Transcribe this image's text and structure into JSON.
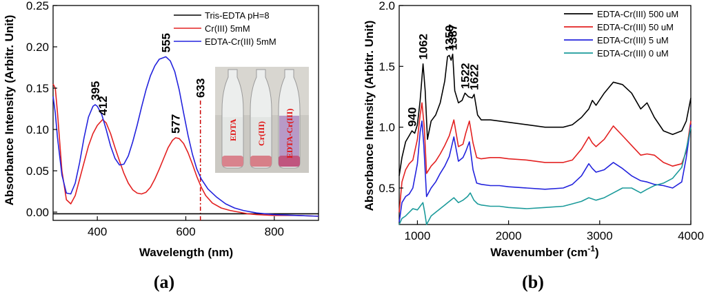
{
  "chart_data": [
    {
      "type": "line",
      "panel_label": "(a)",
      "xlabel": "Wavelength (nm)",
      "ylabel": "Absorbance Intensity (Arbitr. Unit)",
      "xlim": [
        300,
        900
      ],
      "ylim": [
        -0.01,
        0.25
      ],
      "xticks": [
        400,
        600,
        800
      ],
      "yticks": [
        0.0,
        0.05,
        0.1,
        0.15,
        0.2,
        0.25
      ],
      "ytick_labels": [
        "0.00",
        "0.05",
        "0.10",
        "0.15",
        "0.20",
        "0.25"
      ],
      "legend_position": "top-right",
      "series": [
        {
          "name": "Tris-EDTA pH=8",
          "color": "#000000",
          "x": [
            300,
            320,
            340,
            360,
            400,
            450,
            500,
            550,
            600,
            650,
            700,
            750,
            800,
            850,
            900
          ],
          "y": [
            -0.002,
            -0.002,
            -0.002,
            -0.002,
            -0.002,
            -0.002,
            -0.002,
            -0.002,
            -0.002,
            -0.002,
            -0.002,
            -0.002,
            -0.002,
            -0.002,
            -0.002
          ]
        },
        {
          "name": "Cr(III) 5mM",
          "color": "#e32020",
          "x": [
            300,
            305,
            310,
            320,
            330,
            340,
            350,
            360,
            370,
            380,
            390,
            400,
            412,
            420,
            430,
            440,
            450,
            460,
            470,
            480,
            490,
            500,
            510,
            520,
            530,
            540,
            550,
            560,
            570,
            577,
            585,
            595,
            605,
            615,
            625,
            635,
            645,
            660,
            680,
            700,
            720,
            740,
            760,
            800,
            850,
            900
          ],
          "y": [
            0.155,
            0.15,
            0.12,
            0.05,
            0.015,
            0.01,
            0.02,
            0.04,
            0.06,
            0.08,
            0.095,
            0.105,
            0.112,
            0.108,
            0.095,
            0.078,
            0.062,
            0.047,
            0.035,
            0.027,
            0.023,
            0.022,
            0.024,
            0.03,
            0.04,
            0.052,
            0.065,
            0.078,
            0.087,
            0.09,
            0.089,
            0.083,
            0.072,
            0.058,
            0.043,
            0.03,
            0.02,
            0.011,
            0.005,
            0.002,
            0.0,
            -0.002,
            -0.003,
            -0.004,
            -0.004,
            -0.005
          ]
        },
        {
          "name": "EDTA-Cr(III) 5mM",
          "color": "#2222dd",
          "x": [
            300,
            305,
            310,
            320,
            330,
            340,
            350,
            360,
            370,
            380,
            390,
            395,
            400,
            410,
            420,
            430,
            440,
            450,
            460,
            470,
            480,
            490,
            500,
            510,
            520,
            530,
            540,
            555,
            565,
            575,
            585,
            595,
            605,
            615,
            625,
            635,
            650,
            670,
            690,
            710,
            730,
            760,
            800,
            850,
            900
          ],
          "y": [
            0.14,
            0.12,
            0.09,
            0.045,
            0.023,
            0.022,
            0.035,
            0.06,
            0.09,
            0.115,
            0.128,
            0.13,
            0.128,
            0.118,
            0.1,
            0.08,
            0.065,
            0.057,
            0.058,
            0.068,
            0.085,
            0.105,
            0.127,
            0.148,
            0.165,
            0.177,
            0.185,
            0.188,
            0.183,
            0.17,
            0.148,
            0.12,
            0.093,
            0.07,
            0.052,
            0.04,
            0.028,
            0.018,
            0.01,
            0.005,
            0.002,
            -0.001,
            -0.003,
            -0.004,
            -0.005
          ]
        }
      ],
      "peak_labels": [
        {
          "text": "395",
          "x": 395,
          "y": 0.13
        },
        {
          "text": "412",
          "x": 412,
          "y": 0.112
        },
        {
          "text": "555",
          "x": 555,
          "y": 0.188
        },
        {
          "text": "577",
          "x": 577,
          "y": 0.09
        }
      ],
      "marker_line": {
        "x": 633,
        "label": "633",
        "color": "#cc0000"
      },
      "inset_photo": {
        "description_labels": [
          "EDTA",
          "Cr(III)",
          "EDTA-Cr(III)"
        ],
        "liquid_colors": [
          "#e9ebea",
          "#e6e8e6",
          "#b79ac7"
        ],
        "base_colors": [
          "#d9838d",
          "#d77f88",
          "#c0557f"
        ],
        "background": "#c9c7c1"
      }
    },
    {
      "type": "line",
      "panel_label": "(b)",
      "xlabel": "Wavenumber (cm",
      "xlabel_superscript": "-1",
      "xlabel_suffix": ")",
      "ylabel": "Absorbance Intensity (Arbitr. Unit)",
      "xlim": [
        800,
        4000
      ],
      "ylim": [
        0.2,
        2.0
      ],
      "xticks": [
        1000,
        2000,
        3000,
        4000
      ],
      "yticks": [
        0.5,
        1.0,
        1.5,
        2.0
      ],
      "ytick_labels": [
        "0.5",
        "1.0",
        "1.5",
        "2.0"
      ],
      "legend_position": "top-right",
      "series": [
        {
          "name": "EDTA-Cr(III) 500 uM",
          "color": "#000000",
          "x": [
            800,
            830,
            870,
            910,
            940,
            970,
            1000,
            1030,
            1062,
            1085,
            1110,
            1150,
            1200,
            1250,
            1300,
            1330,
            1350,
            1370,
            1387,
            1410,
            1450,
            1490,
            1522,
            1560,
            1600,
            1622,
            1660,
            1700,
            1800,
            1900,
            2000,
            2200,
            2400,
            2600,
            2700,
            2800,
            2880,
            2920,
            2960,
            3050,
            3150,
            3250,
            3350,
            3450,
            3520,
            3600,
            3700,
            3800,
            3900,
            3950,
            4000
          ],
          "y": [
            0.6,
            0.75,
            0.88,
            0.93,
            0.97,
            0.95,
            1.02,
            1.22,
            1.52,
            1.3,
            0.9,
            1.05,
            1.1,
            1.2,
            1.38,
            1.58,
            1.59,
            1.55,
            1.6,
            1.3,
            1.2,
            1.22,
            1.28,
            1.25,
            1.24,
            1.27,
            1.1,
            1.06,
            1.06,
            1.05,
            1.04,
            1.02,
            1.0,
            1.0,
            1.02,
            1.08,
            1.15,
            1.22,
            1.18,
            1.28,
            1.37,
            1.35,
            1.28,
            1.15,
            1.2,
            1.08,
            0.97,
            0.94,
            0.97,
            1.05,
            1.24
          ]
        },
        {
          "name": "EDTA-Cr(III) 50 uM",
          "color": "#e32020",
          "x": [
            800,
            830,
            870,
            910,
            950,
            1000,
            1030,
            1050,
            1075,
            1100,
            1150,
            1200,
            1250,
            1300,
            1350,
            1400,
            1450,
            1500,
            1530,
            1570,
            1610,
            1650,
            1700,
            1800,
            1900,
            2000,
            2200,
            2400,
            2600,
            2700,
            2800,
            2880,
            2920,
            2960,
            3050,
            3150,
            3250,
            3350,
            3450,
            3520,
            3600,
            3700,
            3800,
            3900,
            3950,
            4000
          ],
          "y": [
            0.3,
            0.55,
            0.65,
            0.7,
            0.73,
            0.9,
            1.1,
            1.2,
            1.0,
            0.62,
            0.68,
            0.72,
            0.78,
            0.85,
            0.93,
            1.06,
            0.84,
            0.86,
            0.95,
            1.05,
            0.87,
            0.75,
            0.74,
            0.75,
            0.75,
            0.74,
            0.73,
            0.71,
            0.71,
            0.73,
            0.82,
            0.92,
            0.87,
            0.84,
            0.9,
            1.01,
            0.93,
            0.85,
            0.77,
            0.78,
            0.77,
            0.71,
            0.68,
            0.7,
            0.8,
            1.05
          ]
        },
        {
          "name": "EDTA-Cr(III) 5 uM",
          "color": "#2222dd",
          "x": [
            800,
            830,
            870,
            910,
            950,
            1000,
            1030,
            1050,
            1070,
            1100,
            1150,
            1200,
            1250,
            1300,
            1350,
            1400,
            1450,
            1500,
            1530,
            1570,
            1610,
            1650,
            1700,
            1800,
            1900,
            2000,
            2200,
            2400,
            2600,
            2700,
            2800,
            2880,
            2920,
            2960,
            3050,
            3150,
            3250,
            3350,
            3450,
            3520,
            3600,
            3700,
            3800,
            3900,
            3950,
            4000
          ],
          "y": [
            0.22,
            0.38,
            0.43,
            0.45,
            0.5,
            0.7,
            0.96,
            1.05,
            0.85,
            0.43,
            0.5,
            0.55,
            0.62,
            0.68,
            0.76,
            0.92,
            0.72,
            0.75,
            0.8,
            0.88,
            0.65,
            0.54,
            0.53,
            0.52,
            0.52,
            0.51,
            0.5,
            0.49,
            0.5,
            0.53,
            0.6,
            0.7,
            0.66,
            0.63,
            0.65,
            0.71,
            0.66,
            0.6,
            0.56,
            0.55,
            0.53,
            0.52,
            0.5,
            0.55,
            0.75,
            1.02
          ]
        },
        {
          "name": "EDTA-Cr(III) 0 uM",
          "color": "#1a9a9a",
          "x": [
            800,
            830,
            870,
            910,
            950,
            1000,
            1030,
            1060,
            1080,
            1100,
            1150,
            1200,
            1250,
            1300,
            1350,
            1400,
            1450,
            1500,
            1550,
            1580,
            1620,
            1660,
            1700,
            1800,
            1900,
            2000,
            2200,
            2400,
            2600,
            2700,
            2800,
            2880,
            2920,
            2960,
            3050,
            3150,
            3250,
            3350,
            3450,
            3520,
            3600,
            3700,
            3800,
            3900,
            3950,
            4000
          ],
          "y": [
            0.2,
            0.25,
            0.27,
            0.3,
            0.33,
            0.32,
            0.35,
            0.38,
            0.3,
            0.2,
            0.27,
            0.3,
            0.33,
            0.36,
            0.39,
            0.42,
            0.38,
            0.4,
            0.43,
            0.46,
            0.4,
            0.37,
            0.36,
            0.35,
            0.35,
            0.34,
            0.33,
            0.34,
            0.35,
            0.37,
            0.39,
            0.42,
            0.41,
            0.4,
            0.42,
            0.46,
            0.5,
            0.5,
            0.46,
            0.49,
            0.52,
            0.54,
            0.58,
            0.67,
            0.82,
            1.0
          ]
        }
      ],
      "peak_labels": [
        {
          "text": "940",
          "x": 940,
          "y": 0.97
        },
        {
          "text": "1062",
          "x": 1062,
          "y": 1.52
        },
        {
          "text": "1350",
          "x": 1350,
          "y": 1.59
        },
        {
          "text": "1387",
          "x": 1387,
          "y": 1.6
        },
        {
          "text": "1522",
          "x": 1522,
          "y": 1.28
        },
        {
          "text": "1622",
          "x": 1622,
          "y": 1.27
        }
      ]
    }
  ]
}
